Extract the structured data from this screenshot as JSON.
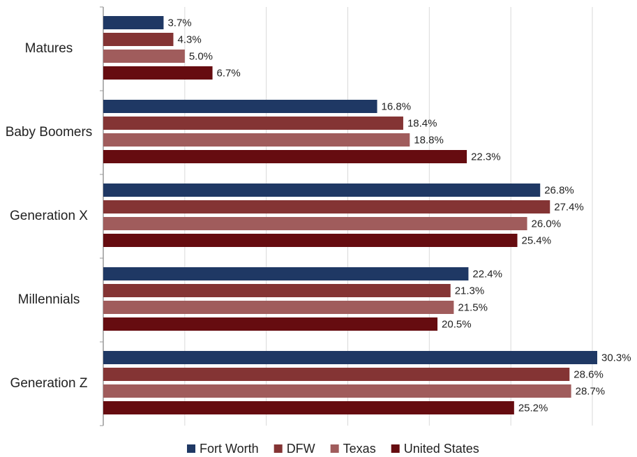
{
  "chart_data": {
    "type": "hbar",
    "categories": [
      "Matures",
      "Baby Boomers",
      "Generation X",
      "Millennials",
      "Generation Z"
    ],
    "series": [
      {
        "name": "Fort Worth",
        "color": "#1f3864",
        "values": [
          3.7,
          16.8,
          26.8,
          22.4,
          30.3
        ],
        "value_labels": [
          "3.7%",
          "16.8%",
          "26.8%",
          "22.4%",
          "30.3%"
        ]
      },
      {
        "name": "DFW",
        "color": "#843434",
        "values": [
          4.3,
          18.4,
          27.4,
          21.3,
          28.6
        ],
        "value_labels": [
          "4.3%",
          "18.4%",
          "27.4%",
          "21.3%",
          "28.6%"
        ]
      },
      {
        "name": "Texas",
        "color": "#a05c5c",
        "values": [
          5.0,
          18.8,
          26.0,
          21.5,
          28.7
        ],
        "value_labels": [
          "5.0%",
          "18.8%",
          "26.0%",
          "21.5%",
          "28.7%"
        ]
      },
      {
        "name": "United States",
        "color": "#660c10",
        "values": [
          6.7,
          22.3,
          25.4,
          20.5,
          25.2
        ],
        "value_labels": [
          "6.7%",
          "22.3%",
          "25.4%",
          "20.5%",
          "25.2%"
        ]
      }
    ],
    "xlim": [
      0,
      30
    ],
    "xticks": [
      0,
      5,
      10,
      15,
      20,
      25,
      30
    ],
    "grid": true,
    "legend": "bottom"
  }
}
